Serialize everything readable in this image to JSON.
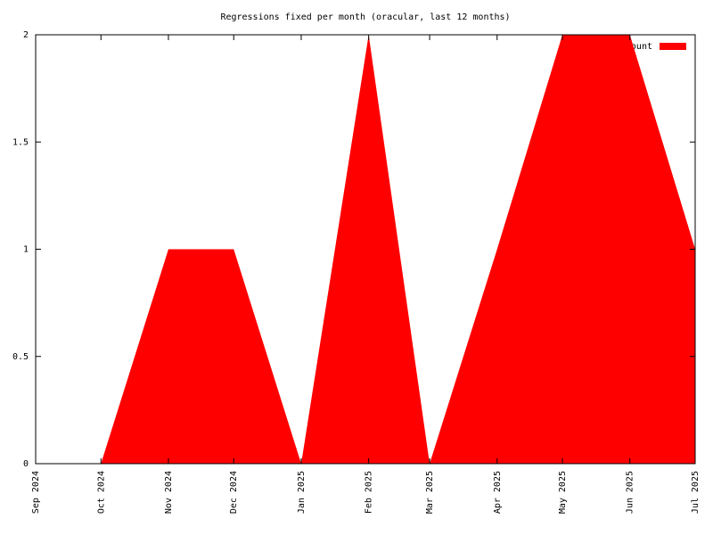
{
  "chart_data": {
    "type": "area",
    "title": "Regressions fixed per month (oracular, last 12 months)",
    "x": [
      "2024-09",
      "2024-10",
      "2024-11",
      "2024-12",
      "2025-01",
      "2025-02",
      "2025-03",
      "2025-04",
      "2025-05",
      "2025-06",
      "2025-07"
    ],
    "series": [
      {
        "name": "count",
        "color": "#ff0000",
        "values": [
          0,
          0,
          1,
          1,
          0,
          2,
          0,
          1,
          2,
          2,
          1
        ]
      }
    ],
    "xlim": [
      "2024-09",
      "2025-07"
    ],
    "xticks": [
      {
        "value": "2024-09",
        "label": "Sep 2024"
      },
      {
        "value": "2024-10",
        "label": "Oct 2024"
      },
      {
        "value": "2024-11",
        "label": "Nov 2024"
      },
      {
        "value": "2024-12",
        "label": "Dec 2024"
      },
      {
        "value": "2025-01",
        "label": "Jan 2025"
      },
      {
        "value": "2025-02",
        "label": "Feb 2025"
      },
      {
        "value": "2025-03",
        "label": "Mar 2025"
      },
      {
        "value": "2025-04",
        "label": "Apr 2025"
      },
      {
        "value": "2025-05",
        "label": "May 2025"
      },
      {
        "value": "2025-06",
        "label": "Jun 2025"
      },
      {
        "value": "2025-07",
        "label": "Jul 2025"
      }
    ],
    "ylim": [
      0,
      2
    ],
    "yticks": [
      0,
      0.5,
      1,
      1.5,
      2
    ],
    "grid": false,
    "legend": "top-right"
  }
}
